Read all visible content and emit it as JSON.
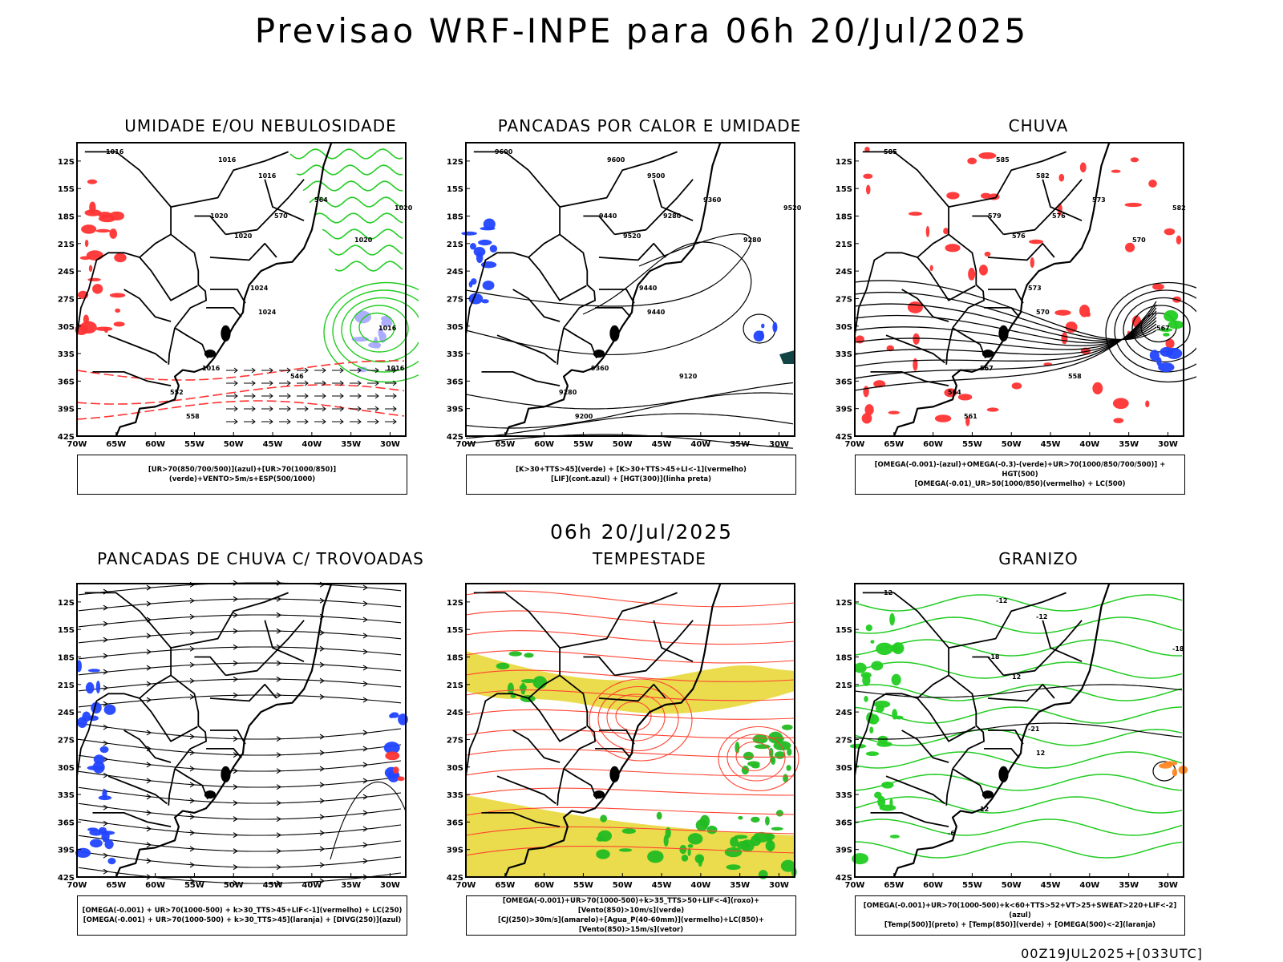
{
  "title": "Previsao WRF-INPE  para 06h 20/Jul/2025",
  "subtitle": "06h 20/Jul/2025",
  "footer": "00Z19JUL2025+[033UTC]",
  "axes": {
    "lat_labels": [
      "12S",
      "15S",
      "18S",
      "21S",
      "24S",
      "27S",
      "30S",
      "33S",
      "36S",
      "39S",
      "42S"
    ],
    "lon_labels": [
      "70W",
      "65W",
      "60W",
      "55W",
      "50W",
      "45W",
      "40W",
      "35W",
      "30W"
    ]
  },
  "panels": [
    {
      "id": "umidade",
      "title": "UMIDADE E/OU NEBULOSIDADE",
      "legend": [
        "[UR>70(850/700/500)](azul)+[UR>70(1000/850)](verde)+VENTO>5m/s+ESP(500/1000)"
      ],
      "contour_labels": [
        "1016",
        "1016",
        "1016",
        "1020",
        "1020",
        "1020",
        "1024",
        "1024",
        "1016",
        "552",
        "558",
        "546",
        "570",
        "564",
        "1020",
        "1016",
        "1016"
      ]
    },
    {
      "id": "pancadas-calor",
      "title": "PANCADAS POR CALOR E UMIDADE",
      "legend": [
        "[K>30+TTS>45](verde) + [K>30+TTS>45+LI<-1](vermelho)",
        "[LIF](cont.azul) + [HGT(300)](linha preta)"
      ],
      "contour_labels": [
        "9600",
        "9600",
        "9500",
        "9520",
        "9440",
        "9520",
        "9440",
        "9440",
        "9360",
        "9280",
        "9200",
        "9120",
        "9280",
        "9360",
        "9280"
      ]
    },
    {
      "id": "chuva",
      "title": "CHUVA",
      "legend": [
        "[OMEGA(-0.001)-(azul)+OMEGA(-0.3)-(verde)+UR>70(1000/850/700/500)] + HGT(500)",
        "[OMEGA(-0.01)_UR>50(1000/850)(vermelho) + LC(500)"
      ],
      "contour_labels": [
        "585",
        "585",
        "582",
        "582",
        "579",
        "576",
        "573",
        "570",
        "567",
        "564",
        "561",
        "558",
        "576",
        "573",
        "570",
        "567"
      ]
    },
    {
      "id": "trovoadas",
      "title": "PANCADAS DE CHUVA C/ TROVOADAS",
      "legend": [
        "[OMEGA(-0.001) + UR>70(1000-500) + k>30_TTS>45+LIF<-1](vermelho) + LC(250)",
        "[OMEGA(-0.001) + UR>70(1000-500) + k>30_TTS>45](laranja) + [DIVG(250)](azul)"
      ],
      "contour_labels": []
    },
    {
      "id": "tempestade",
      "title": "TEMPESTADE",
      "legend": [
        "[OMEGA(-0.001)+UR>70(1000-500)+k>35_TTS>50+LIF<-4](roxo)+[Vento(850)>10m/s](verde)",
        "[CJ(250)>30m/s](amarelo)+[Agua_P(40-60mm)](vermelho)+LC(850)+[Vento(850)>15m/s](vetor)"
      ],
      "contour_labels": []
    },
    {
      "id": "granizo",
      "title": "GRANIZO",
      "legend": [
        "[OMEGA(-0.001)+UR>70(1000-500)+k<60+TTS>52+VT>25+SWEAT>220+LIF<-2](azul)",
        "[Temp(500)](preto) + [Temp(850)](verde) + [OMEGA(500)<-2](laranja)"
      ],
      "contour_labels": [
        "12",
        "-12",
        "-12",
        "-18",
        "-18",
        "12",
        "-21",
        "12",
        "12",
        "-6"
      ]
    }
  ],
  "colors": {
    "humidity_green": "#22cc22",
    "humidity_blue": "#aaaaff",
    "thickness_red": "#ff3333",
    "lif_blue": "#2244ff",
    "jet_yellow": "#e8d838",
    "wind_green": "#22bb22",
    "stream_red": "#ff4433"
  }
}
